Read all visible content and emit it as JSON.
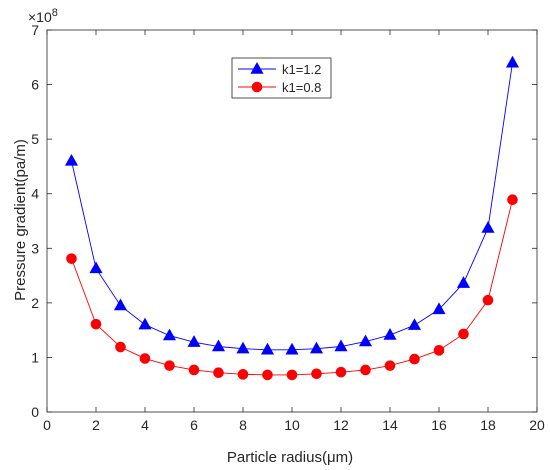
{
  "chart_data": {
    "type": "line",
    "xlabel": "Particle radius(μm)",
    "ylabel": "Pressure gradient(pa/m)",
    "y_exponent_label": "×10",
    "y_exponent_power": "8",
    "xlim": [
      0,
      20
    ],
    "ylim": [
      0,
      7
    ],
    "xticks": [
      0,
      2,
      4,
      6,
      8,
      10,
      12,
      14,
      16,
      18,
      20
    ],
    "yticks": [
      0,
      1,
      2,
      3,
      4,
      5,
      6,
      7
    ],
    "grid": false,
    "legend_position": "top-center",
    "x": [
      1,
      2,
      3,
      4,
      5,
      6,
      7,
      8,
      9,
      10,
      11,
      12,
      13,
      14,
      15,
      16,
      17,
      18,
      19
    ],
    "series": [
      {
        "name": "k1=1.2",
        "color": "#0000ff",
        "marker": "triangle",
        "values": [
          4.6,
          2.63,
          1.95,
          1.6,
          1.4,
          1.28,
          1.2,
          1.16,
          1.14,
          1.14,
          1.16,
          1.2,
          1.29,
          1.41,
          1.59,
          1.88,
          2.36,
          3.37,
          6.4
        ]
      },
      {
        "name": "k1=0.8",
        "color": "#ff0000",
        "marker": "circle",
        "values": [
          2.81,
          1.61,
          1.19,
          0.98,
          0.85,
          0.77,
          0.72,
          0.69,
          0.68,
          0.68,
          0.7,
          0.73,
          0.77,
          0.85,
          0.97,
          1.13,
          1.43,
          2.05,
          3.89
        ]
      }
    ]
  }
}
